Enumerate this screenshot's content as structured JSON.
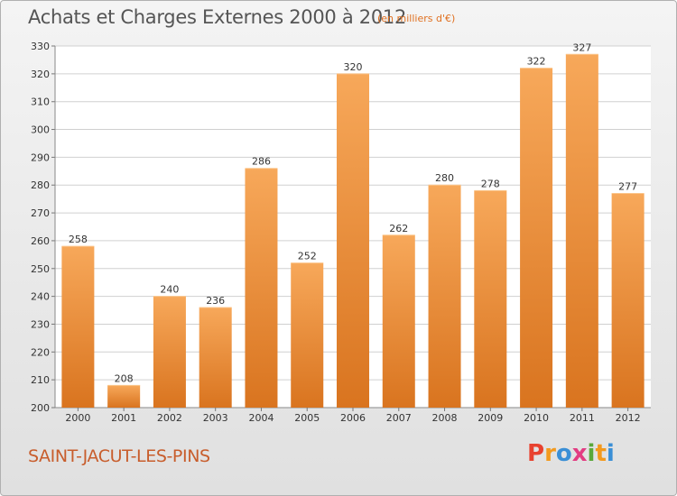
{
  "header": {
    "title": "Achats et Charges Externes 2000 à 2012",
    "unit": "(en milliers d'€)"
  },
  "footer": {
    "place": "SAINT-JACUT-LES-PINS",
    "logo_letters": [
      "P",
      "r",
      "o",
      "x",
      "i",
      "t",
      "i"
    ],
    "logo_colors": [
      "#e8422f",
      "#f39a1e",
      "#3a8fd6",
      "#e23c82",
      "#5aa83a",
      "#f39a1e",
      "#3a8fd6"
    ]
  },
  "chart_data": {
    "type": "bar",
    "title": "Achats et Charges Externes 2000 à 2012",
    "subtitle": "(en milliers d'€)",
    "categories": [
      "2000",
      "2001",
      "2002",
      "2003",
      "2004",
      "2005",
      "2006",
      "2007",
      "2008",
      "2009",
      "2010",
      "2011",
      "2012"
    ],
    "values": [
      258,
      208,
      240,
      236,
      286,
      252,
      320,
      262,
      280,
      278,
      322,
      327,
      277
    ],
    "ylim": [
      200,
      330
    ],
    "yticks": [
      200,
      210,
      220,
      230,
      240,
      250,
      260,
      270,
      280,
      290,
      300,
      310,
      320,
      330
    ],
    "grid": true,
    "bar_color": "#f0923a",
    "bar_color_light": "#f7a85a",
    "bar_color_dark": "#d9741f"
  }
}
